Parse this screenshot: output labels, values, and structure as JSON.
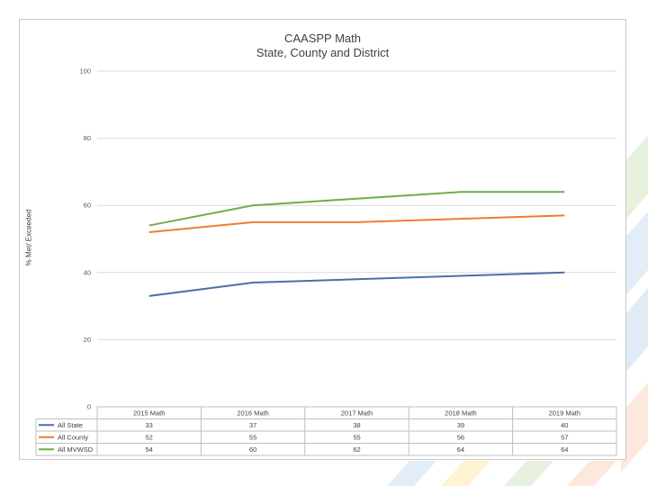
{
  "chart_data": {
    "type": "line",
    "title": "CAASPP Math",
    "subtitle": "State, County and District",
    "ylabel": "% Met/ Exceeded",
    "xlabel": "",
    "ylim": [
      0,
      100
    ],
    "yticks": [
      0,
      20,
      40,
      60,
      80,
      100
    ],
    "categories": [
      "2015 Math",
      "2016 Math",
      "2017 Math",
      "2018 Math",
      "2019 Math"
    ],
    "series": [
      {
        "name": "All State",
        "color": "#4a6fa5",
        "values": [
          33,
          37,
          38,
          39,
          40
        ]
      },
      {
        "name": "All County",
        "color": "#ed7d31",
        "values": [
          52,
          55,
          55,
          56,
          57
        ]
      },
      {
        "name": "All MVWSD",
        "color": "#70ad47",
        "values": [
          54,
          60,
          62,
          64,
          64
        ]
      }
    ],
    "grid": true,
    "legend": "data-table"
  }
}
